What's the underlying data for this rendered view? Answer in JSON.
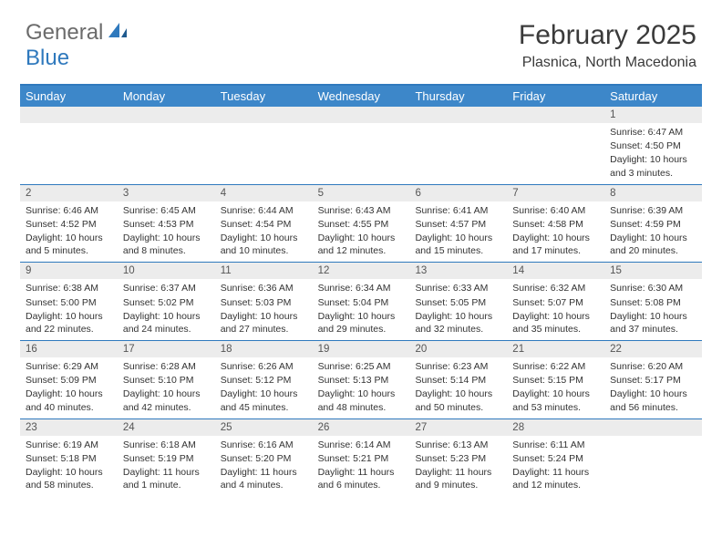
{
  "logo": {
    "text1": "General",
    "text2": "Blue"
  },
  "title": "February 2025",
  "location": "Plasnica, North Macedonia",
  "colors": {
    "header_bg": "#3d87c9",
    "header_border": "#2f79bd",
    "daynum_bg": "#ececec",
    "text": "#333333",
    "logo_gray": "#6b6b6b",
    "logo_blue": "#2f79bd"
  },
  "day_names": [
    "Sunday",
    "Monday",
    "Tuesday",
    "Wednesday",
    "Thursday",
    "Friday",
    "Saturday"
  ],
  "weeks": [
    [
      {
        "n": "",
        "sunrise": "",
        "sunset": "",
        "daylight": ""
      },
      {
        "n": "",
        "sunrise": "",
        "sunset": "",
        "daylight": ""
      },
      {
        "n": "",
        "sunrise": "",
        "sunset": "",
        "daylight": ""
      },
      {
        "n": "",
        "sunrise": "",
        "sunset": "",
        "daylight": ""
      },
      {
        "n": "",
        "sunrise": "",
        "sunset": "",
        "daylight": ""
      },
      {
        "n": "",
        "sunrise": "",
        "sunset": "",
        "daylight": ""
      },
      {
        "n": "1",
        "sunrise": "Sunrise: 6:47 AM",
        "sunset": "Sunset: 4:50 PM",
        "daylight": "Daylight: 10 hours and 3 minutes."
      }
    ],
    [
      {
        "n": "2",
        "sunrise": "Sunrise: 6:46 AM",
        "sunset": "Sunset: 4:52 PM",
        "daylight": "Daylight: 10 hours and 5 minutes."
      },
      {
        "n": "3",
        "sunrise": "Sunrise: 6:45 AM",
        "sunset": "Sunset: 4:53 PM",
        "daylight": "Daylight: 10 hours and 8 minutes."
      },
      {
        "n": "4",
        "sunrise": "Sunrise: 6:44 AM",
        "sunset": "Sunset: 4:54 PM",
        "daylight": "Daylight: 10 hours and 10 minutes."
      },
      {
        "n": "5",
        "sunrise": "Sunrise: 6:43 AM",
        "sunset": "Sunset: 4:55 PM",
        "daylight": "Daylight: 10 hours and 12 minutes."
      },
      {
        "n": "6",
        "sunrise": "Sunrise: 6:41 AM",
        "sunset": "Sunset: 4:57 PM",
        "daylight": "Daylight: 10 hours and 15 minutes."
      },
      {
        "n": "7",
        "sunrise": "Sunrise: 6:40 AM",
        "sunset": "Sunset: 4:58 PM",
        "daylight": "Daylight: 10 hours and 17 minutes."
      },
      {
        "n": "8",
        "sunrise": "Sunrise: 6:39 AM",
        "sunset": "Sunset: 4:59 PM",
        "daylight": "Daylight: 10 hours and 20 minutes."
      }
    ],
    [
      {
        "n": "9",
        "sunrise": "Sunrise: 6:38 AM",
        "sunset": "Sunset: 5:00 PM",
        "daylight": "Daylight: 10 hours and 22 minutes."
      },
      {
        "n": "10",
        "sunrise": "Sunrise: 6:37 AM",
        "sunset": "Sunset: 5:02 PM",
        "daylight": "Daylight: 10 hours and 24 minutes."
      },
      {
        "n": "11",
        "sunrise": "Sunrise: 6:36 AM",
        "sunset": "Sunset: 5:03 PM",
        "daylight": "Daylight: 10 hours and 27 minutes."
      },
      {
        "n": "12",
        "sunrise": "Sunrise: 6:34 AM",
        "sunset": "Sunset: 5:04 PM",
        "daylight": "Daylight: 10 hours and 29 minutes."
      },
      {
        "n": "13",
        "sunrise": "Sunrise: 6:33 AM",
        "sunset": "Sunset: 5:05 PM",
        "daylight": "Daylight: 10 hours and 32 minutes."
      },
      {
        "n": "14",
        "sunrise": "Sunrise: 6:32 AM",
        "sunset": "Sunset: 5:07 PM",
        "daylight": "Daylight: 10 hours and 35 minutes."
      },
      {
        "n": "15",
        "sunrise": "Sunrise: 6:30 AM",
        "sunset": "Sunset: 5:08 PM",
        "daylight": "Daylight: 10 hours and 37 minutes."
      }
    ],
    [
      {
        "n": "16",
        "sunrise": "Sunrise: 6:29 AM",
        "sunset": "Sunset: 5:09 PM",
        "daylight": "Daylight: 10 hours and 40 minutes."
      },
      {
        "n": "17",
        "sunrise": "Sunrise: 6:28 AM",
        "sunset": "Sunset: 5:10 PM",
        "daylight": "Daylight: 10 hours and 42 minutes."
      },
      {
        "n": "18",
        "sunrise": "Sunrise: 6:26 AM",
        "sunset": "Sunset: 5:12 PM",
        "daylight": "Daylight: 10 hours and 45 minutes."
      },
      {
        "n": "19",
        "sunrise": "Sunrise: 6:25 AM",
        "sunset": "Sunset: 5:13 PM",
        "daylight": "Daylight: 10 hours and 48 minutes."
      },
      {
        "n": "20",
        "sunrise": "Sunrise: 6:23 AM",
        "sunset": "Sunset: 5:14 PM",
        "daylight": "Daylight: 10 hours and 50 minutes."
      },
      {
        "n": "21",
        "sunrise": "Sunrise: 6:22 AM",
        "sunset": "Sunset: 5:15 PM",
        "daylight": "Daylight: 10 hours and 53 minutes."
      },
      {
        "n": "22",
        "sunrise": "Sunrise: 6:20 AM",
        "sunset": "Sunset: 5:17 PM",
        "daylight": "Daylight: 10 hours and 56 minutes."
      }
    ],
    [
      {
        "n": "23",
        "sunrise": "Sunrise: 6:19 AM",
        "sunset": "Sunset: 5:18 PM",
        "daylight": "Daylight: 10 hours and 58 minutes."
      },
      {
        "n": "24",
        "sunrise": "Sunrise: 6:18 AM",
        "sunset": "Sunset: 5:19 PM",
        "daylight": "Daylight: 11 hours and 1 minute."
      },
      {
        "n": "25",
        "sunrise": "Sunrise: 6:16 AM",
        "sunset": "Sunset: 5:20 PM",
        "daylight": "Daylight: 11 hours and 4 minutes."
      },
      {
        "n": "26",
        "sunrise": "Sunrise: 6:14 AM",
        "sunset": "Sunset: 5:21 PM",
        "daylight": "Daylight: 11 hours and 6 minutes."
      },
      {
        "n": "27",
        "sunrise": "Sunrise: 6:13 AM",
        "sunset": "Sunset: 5:23 PM",
        "daylight": "Daylight: 11 hours and 9 minutes."
      },
      {
        "n": "28",
        "sunrise": "Sunrise: 6:11 AM",
        "sunset": "Sunset: 5:24 PM",
        "daylight": "Daylight: 11 hours and 12 minutes."
      },
      {
        "n": "",
        "sunrise": "",
        "sunset": "",
        "daylight": ""
      }
    ]
  ]
}
